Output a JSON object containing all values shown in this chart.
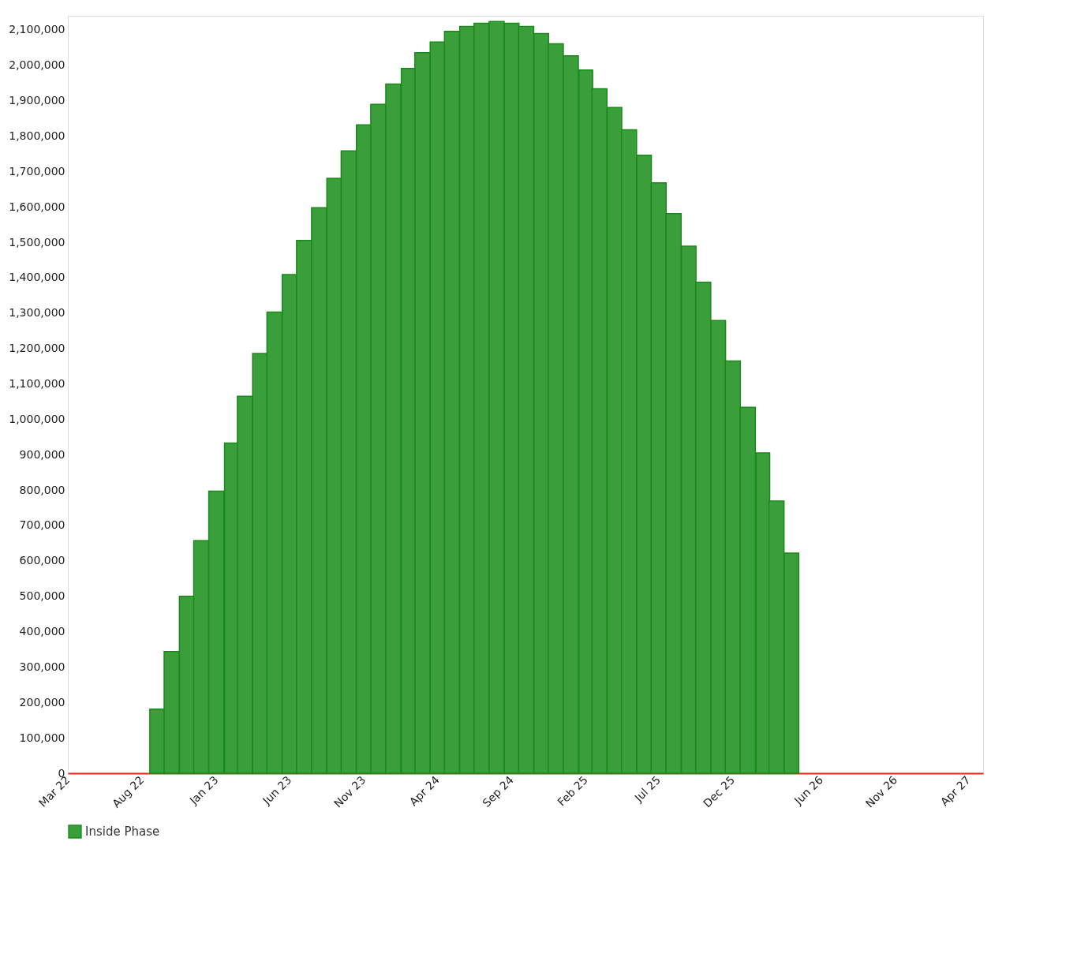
{
  "chart_data": {
    "type": "bar",
    "x": [
      "2022-09",
      "2022-10",
      "2022-11",
      "2022-12",
      "2023-01",
      "2023-02",
      "2023-03",
      "2023-04",
      "2023-05",
      "2023-06",
      "2023-07",
      "2023-08",
      "2023-09",
      "2023-10",
      "2023-11",
      "2023-12",
      "2024-01",
      "2024-02",
      "2024-03",
      "2024-04",
      "2024-05",
      "2024-06",
      "2024-07",
      "2024-08",
      "2024-09",
      "2024-10",
      "2024-11",
      "2024-12",
      "2025-01",
      "2025-02",
      "2025-03",
      "2025-04",
      "2025-05",
      "2025-06",
      "2025-07",
      "2025-08",
      "2025-09",
      "2025-10",
      "2025-11",
      "2025-12",
      "2026-01",
      "2026-02",
      "2026-03",
      "2026-04"
    ],
    "series": [
      {
        "name": "Inside Phase",
        "color": "#3a9f3a",
        "values": [
          181000,
          344000,
          500000,
          657000,
          797000,
          933000,
          1065000,
          1186000,
          1303000,
          1409000,
          1505000,
          1598000,
          1681000,
          1758000,
          1832000,
          1890000,
          1947000,
          1991000,
          2036000,
          2066000,
          2096000,
          2110000,
          2119000,
          2124000,
          2119000,
          2110000,
          2090000,
          2061000,
          2027000,
          1987000,
          1934000,
          1881000,
          1818000,
          1746000,
          1668000,
          1581000,
          1489000,
          1387000,
          1279000,
          1165000,
          1034000,
          905000,
          769000,
          622000
        ]
      }
    ],
    "xlim": [
      "2022-03",
      "2027-05"
    ],
    "xticks": [
      {
        "value": "2022-03",
        "label": "Mar 22"
      },
      {
        "value": "2022-08",
        "label": "Aug 22"
      },
      {
        "value": "2023-01",
        "label": "Jan 23"
      },
      {
        "value": "2023-06",
        "label": "Jun 23"
      },
      {
        "value": "2023-11",
        "label": "Nov 23"
      },
      {
        "value": "2024-04",
        "label": "Apr 24"
      },
      {
        "value": "2024-09",
        "label": "Sep 24"
      },
      {
        "value": "2025-02",
        "label": "Feb 25"
      },
      {
        "value": "2025-07",
        "label": "Jul 25"
      },
      {
        "value": "2025-12",
        "label": "Dec 25"
      },
      {
        "value": "2026-06",
        "label": "Jun 26"
      },
      {
        "value": "2026-11",
        "label": "Nov 26"
      },
      {
        "value": "2027-04",
        "label": "Apr 27"
      }
    ],
    "ylim": [
      0,
      2140000
    ],
    "yticks": [
      {
        "value": 0,
        "label": "0"
      },
      {
        "value": 100000,
        "label": "100,000"
      },
      {
        "value": 200000,
        "label": "200,000"
      },
      {
        "value": 300000,
        "label": "300,000"
      },
      {
        "value": 400000,
        "label": "400,000"
      },
      {
        "value": 500000,
        "label": "500,000"
      },
      {
        "value": 600000,
        "label": "600,000"
      },
      {
        "value": 700000,
        "label": "700,000"
      },
      {
        "value": 800000,
        "label": "800,000"
      },
      {
        "value": 900000,
        "label": "900,000"
      },
      {
        "value": 1000000,
        "label": "1,000,000"
      },
      {
        "value": 1100000,
        "label": "1,100,000"
      },
      {
        "value": 1200000,
        "label": "1,200,000"
      },
      {
        "value": 1300000,
        "label": "1,300,000"
      },
      {
        "value": 1400000,
        "label": "1,400,000"
      },
      {
        "value": 1500000,
        "label": "1,500,000"
      },
      {
        "value": 1600000,
        "label": "1,600,000"
      },
      {
        "value": 1700000,
        "label": "1,700,000"
      },
      {
        "value": 1800000,
        "label": "1,800,000"
      },
      {
        "value": 1900000,
        "label": "1,900,000"
      },
      {
        "value": 2000000,
        "label": "2,000,000"
      },
      {
        "value": 2100000,
        "label": "2,100,000"
      }
    ],
    "grid": false,
    "legend": "bottom"
  }
}
